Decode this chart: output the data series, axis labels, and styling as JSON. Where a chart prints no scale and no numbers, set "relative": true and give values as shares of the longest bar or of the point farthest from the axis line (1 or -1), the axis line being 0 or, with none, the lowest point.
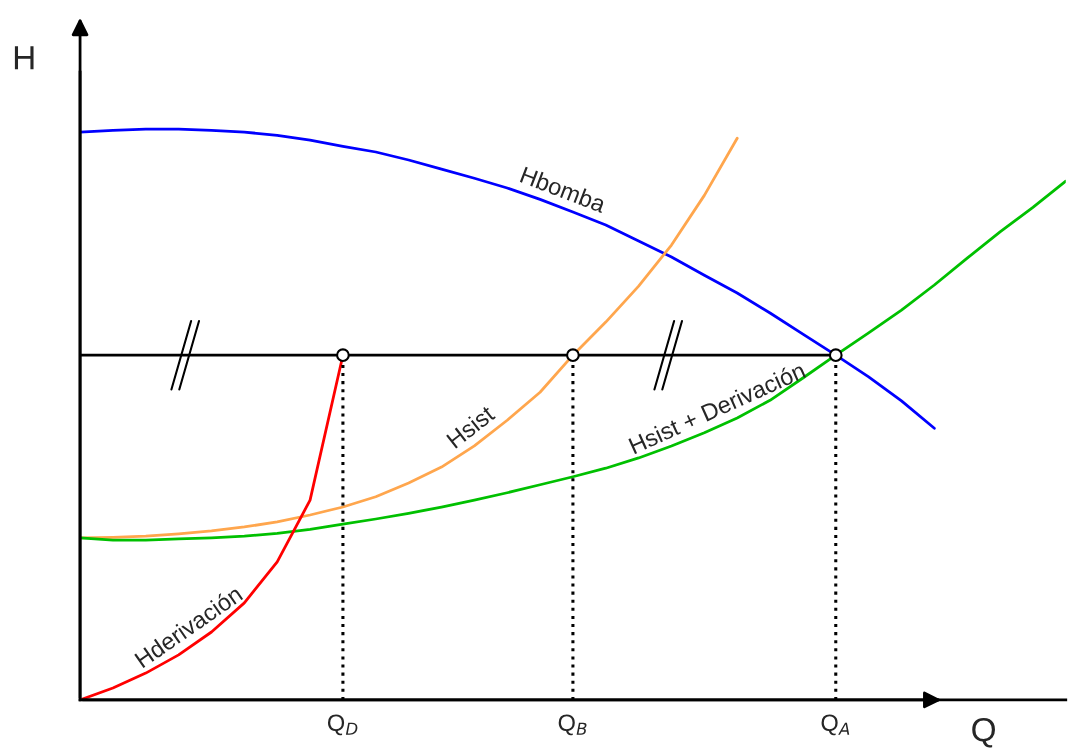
{
  "chart_data": {
    "type": "line",
    "relative": true,
    "xlabel": "Q",
    "ylabel": "H",
    "legend": false,
    "grid": false,
    "categories": [
      null,
      null,
      null,
      null,
      null,
      null,
      null,
      null,
      "Q$_{D}$",
      null,
      null,
      null,
      null,
      null,
      null,
      "Q$_{B}$",
      null,
      null,
      null,
      null,
      null,
      null,
      null,
      "Q$_{A}$",
      null,
      null,
      null,
      null,
      null,
      null,
      null
    ],
    "series": [
      {
        "name": "Hbomba",
        "color": "#0000ff",
        "values": [
          0.995,
          0.998,
          1.0,
          1.0,
          0.998,
          0.995,
          0.989,
          0.981,
          0.97,
          0.96,
          0.946,
          0.93,
          0.914,
          0.897,
          0.877,
          0.855,
          0.832,
          0.804,
          0.776,
          0.744,
          0.713,
          0.678,
          0.641,
          0.604,
          0.566,
          0.524,
          0.476,
          null,
          null,
          null,
          null
        ]
      },
      {
        "name": "Hsist",
        "color": "#ffa64d",
        "values": [
          0.284,
          0.285,
          0.287,
          0.291,
          0.296,
          0.303,
          0.312,
          0.324,
          0.338,
          0.356,
          0.38,
          0.408,
          0.445,
          0.49,
          0.539,
          0.604,
          0.662,
          0.725,
          0.797,
          0.884,
          0.984,
          null,
          null,
          null,
          null,
          null,
          null,
          null,
          null,
          null,
          null
        ]
      },
      {
        "name": "Hsist + Derivación",
        "color": "#00c000",
        "values": [
          0.284,
          0.28,
          0.28,
          0.282,
          0.284,
          0.287,
          0.292,
          0.299,
          0.308,
          0.317,
          0.327,
          0.338,
          0.35,
          0.363,
          0.377,
          0.391,
          0.406,
          0.424,
          0.445,
          0.468,
          0.494,
          0.525,
          0.564,
          0.604,
          0.643,
          0.683,
          0.727,
          0.774,
          0.82,
          0.863,
          0.909
        ]
      },
      {
        "name": "Hderivación",
        "color": "#ff0000",
        "values": [
          0.0,
          0.021,
          0.047,
          0.079,
          0.119,
          0.17,
          0.242,
          0.35,
          0.604,
          null,
          null,
          null,
          null,
          null,
          null,
          null,
          null,
          null,
          null,
          null,
          null,
          null,
          null,
          null,
          null,
          null,
          null,
          null,
          null,
          null,
          null
        ]
      },
      {
        "color": "#000000",
        "values": [
          0.604,
          0.604,
          0.604,
          0.604,
          0.604,
          0.604,
          0.604,
          0.604,
          0.604,
          0.604,
          0.604,
          0.604,
          0.604,
          0.604,
          0.604,
          0.604,
          0.604,
          0.604,
          0.604,
          0.604,
          0.604,
          0.604,
          0.604,
          0.604,
          null,
          null,
          null,
          null,
          null,
          null,
          null
        ]
      },
      {
        "color": "#000000",
        "line_style": "dotted",
        "x": [
          "Q$_{D}$",
          "Q$_{D}$"
        ],
        "values": [
          0.0,
          0.604
        ]
      },
      {
        "color": "#000000",
        "line_style": "dotted",
        "x": [
          "Q$_{B}$",
          "Q$_{B}$"
        ],
        "values": [
          0.0,
          0.604
        ]
      },
      {
        "color": "#000000",
        "line_style": "dotted",
        "x": [
          "Q$_{A}$",
          "Q$_{A}$"
        ],
        "values": [
          0.0,
          0.604
        ]
      },
      {
        "type": "scatter",
        "marker": "circle",
        "color": "#000000",
        "x": [
          "Q$_{D}$",
          "Q$_{B}$",
          "Q$_{A}$"
        ],
        "values": [
          0.604,
          0.604,
          0.604
        ]
      }
    ]
  }
}
